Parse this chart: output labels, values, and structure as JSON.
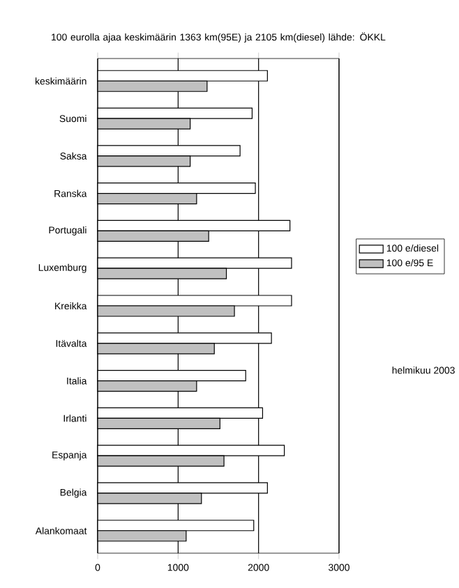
{
  "chart_data": {
    "type": "bar",
    "orientation": "horizontal",
    "title": "100 eurolla ajaa keskimäärin 1363 km(95E) ja 2105 km(diesel) lähde: ÖKKL",
    "categories": [
      "keskimäärin",
      "Suomi",
      "Saksa",
      "Ranska",
      "Portugali",
      "Luxemburg",
      "Kreikka",
      "Itävalta",
      "Italia",
      "Irlanti",
      "Espanja",
      "Belgia",
      "Alankomaat"
    ],
    "series": [
      {
        "name": "100 e/diesel",
        "color": "#ffffff",
        "values": [
          2110,
          1920,
          1770,
          1960,
          2390,
          2410,
          2410,
          2160,
          1840,
          2050,
          2320,
          2110,
          1940
        ]
      },
      {
        "name": "100 e/95 E",
        "color": "#c0c0c0",
        "values": [
          1360,
          1150,
          1150,
          1230,
          1380,
          1600,
          1700,
          1450,
          1230,
          1520,
          1570,
          1290,
          1100
        ]
      }
    ],
    "xlim": [
      0,
      3000
    ],
    "xticks": [
      0,
      1000,
      2000,
      3000
    ],
    "grid": "x",
    "legend": "right",
    "annotations": [
      "helmikuu 2003"
    ]
  }
}
